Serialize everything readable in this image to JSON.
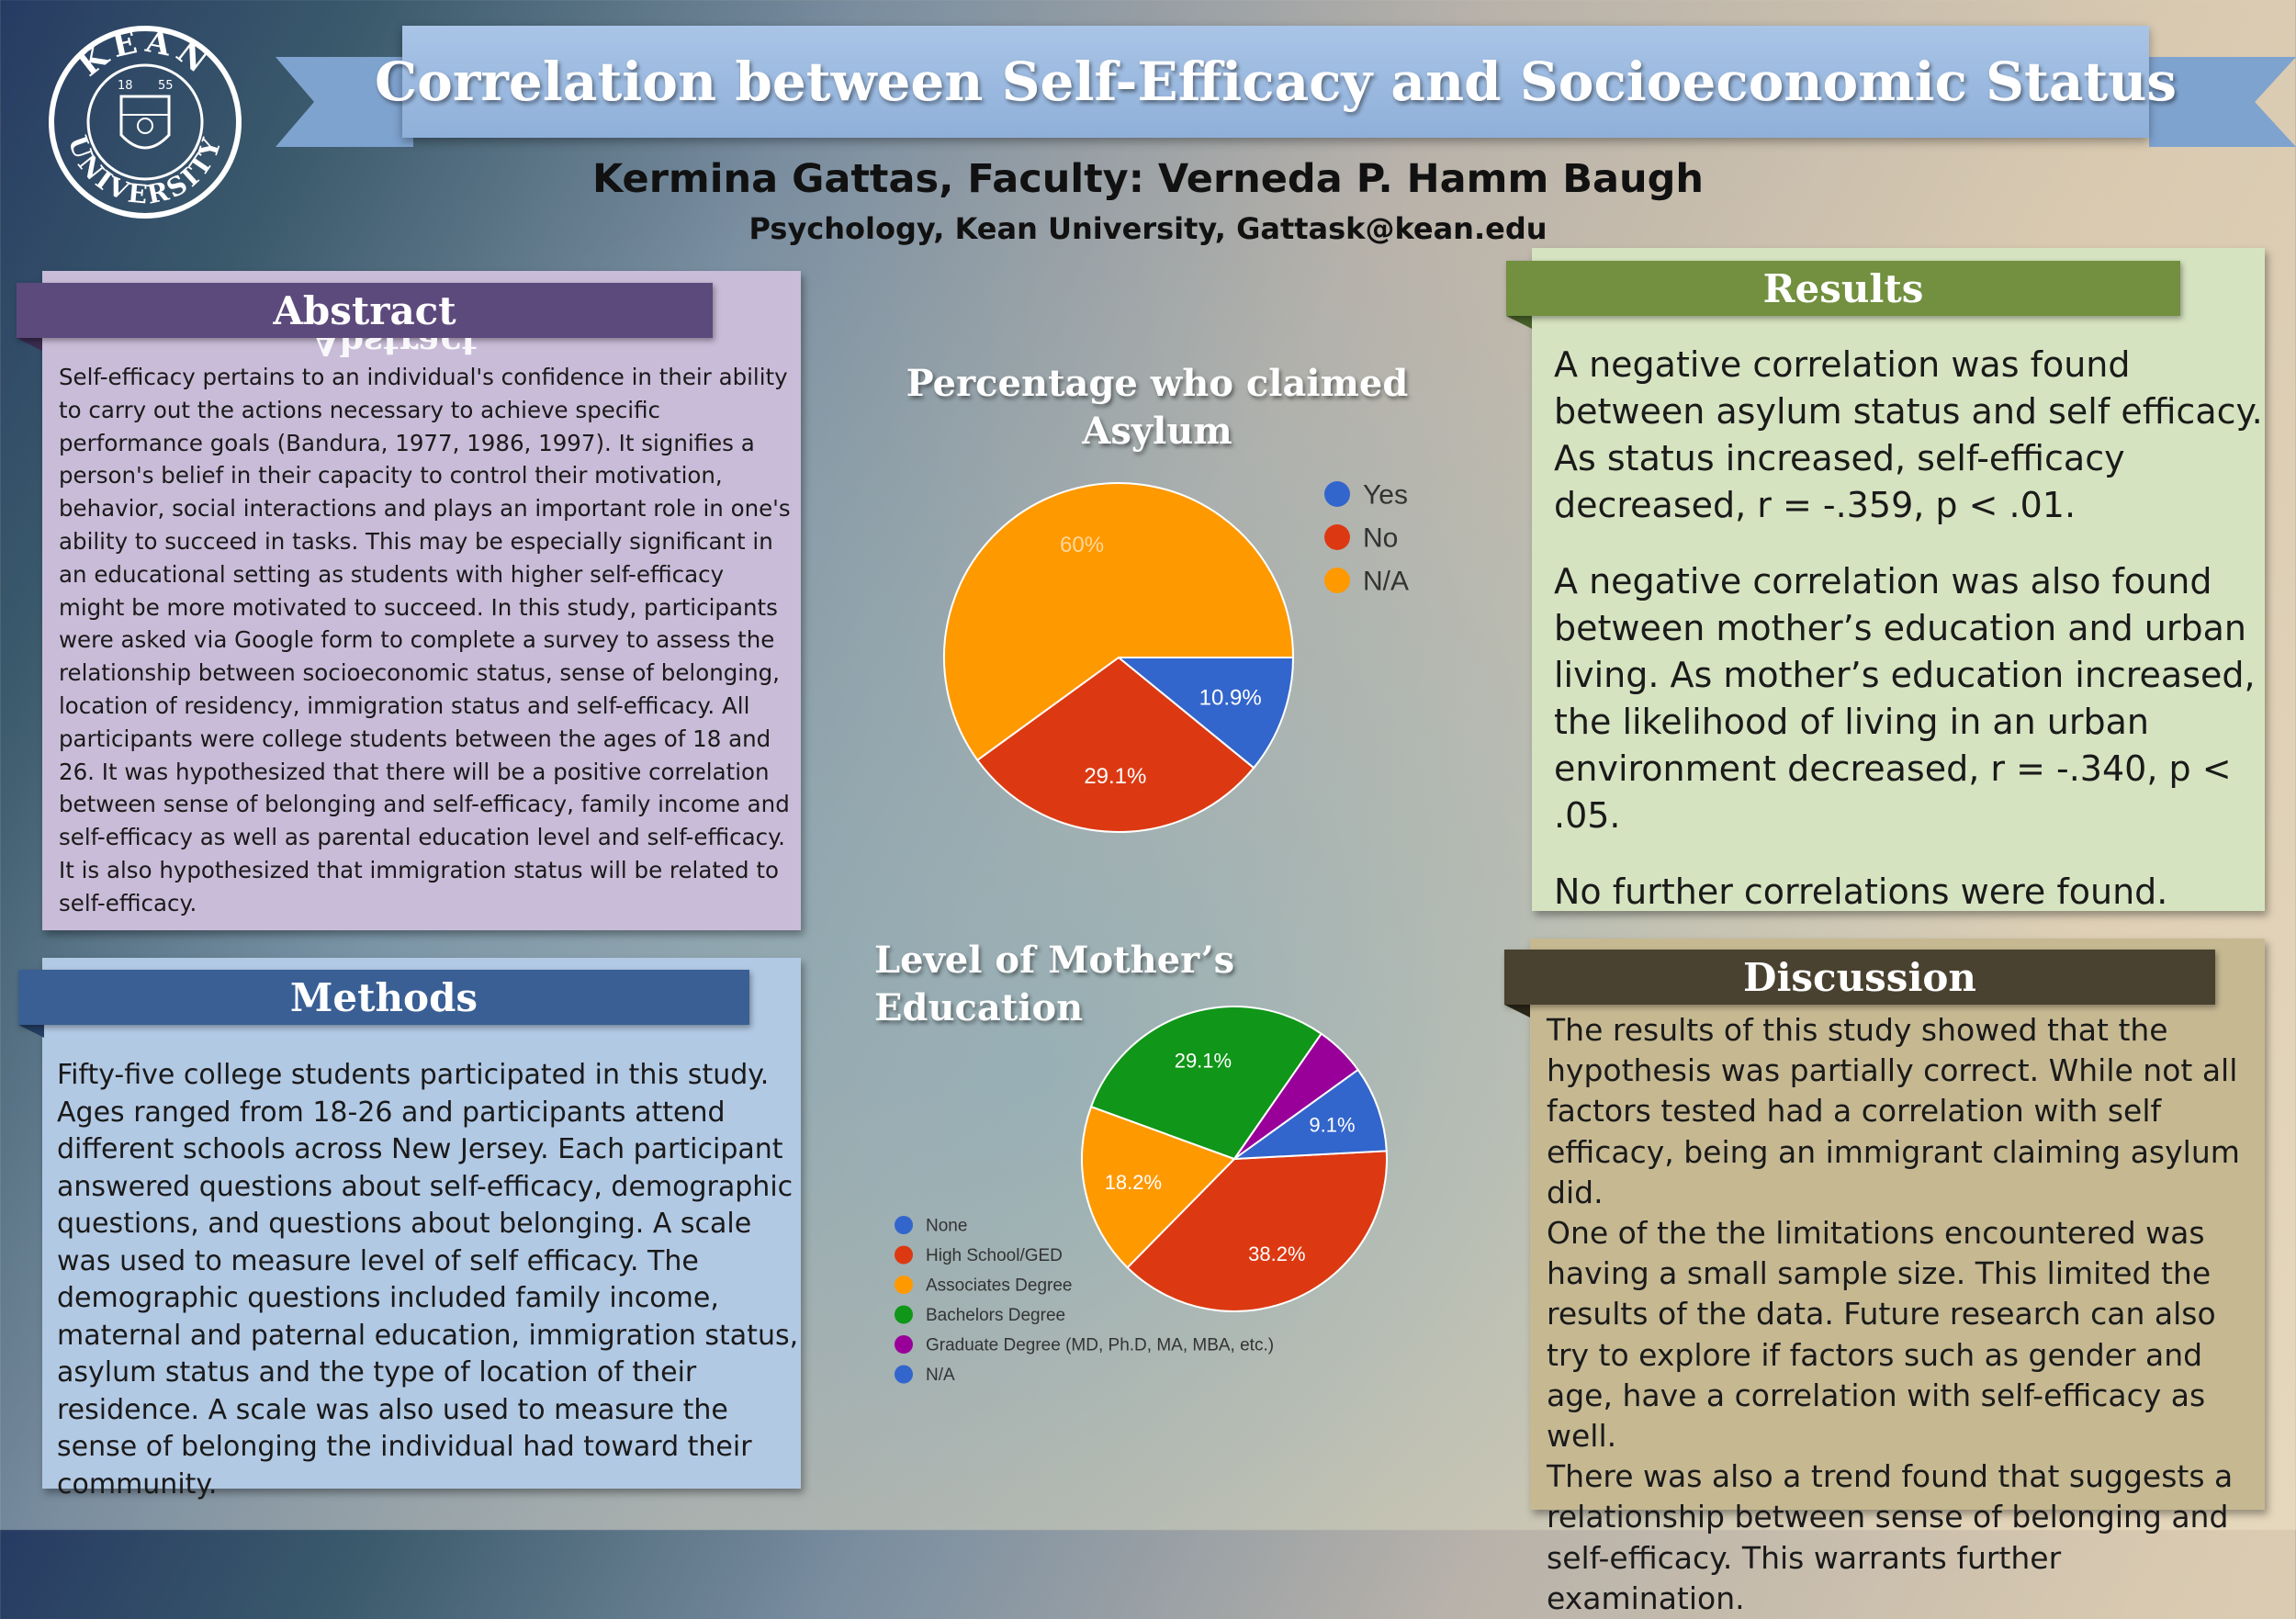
{
  "header": {
    "title": "Correlation between Self-Efficacy and Socioeconomic Status",
    "authors": "Kermina Gattas, Faculty: Verneda P. Hamm Baugh",
    "affiliation": "Psychology, Kean University, Gattask@kean.edu"
  },
  "logo": {
    "top_text": "KEAN",
    "bottom_text": "UNIVERSITY",
    "year_left": "18",
    "year_right": "55"
  },
  "sections": {
    "abstract": {
      "title": "Abstract",
      "text": "Self-efficacy pertains to an individual's confidence in their ability to carry out the actions necessary to achieve specific performance goals (Bandura, 1977, 1986, 1997).  It signifies a person's belief in their capacity to control their motivation, behavior, social interactions and plays an important role in one's ability to succeed in tasks. This may be especially significant in an educational setting as students with higher self-efficacy might be more motivated to succeed. In this study, participants were asked via Google form to complete a survey to assess the relationship between socioeconomic status, sense of belonging, location of residency, immigration status and self-efficacy. All participants were college students between the ages of 18 and 26. It was hypothesized that there will be a positive correlation between sense of belonging and self-efficacy, family income and self-efficacy as well as parental education level and self-efficacy. It is also hypothesized that immigration status will be related to self-efficacy."
    },
    "methods": {
      "title": "Methods",
      "text": "Fifty-five college students participated in this study. Ages ranged from 18-26 and participants attend different schools across New Jersey. Each participant answered questions about self-efficacy, demographic questions, and questions about belonging. A scale was used to measure level of self efficacy. The demographic questions included family income, maternal and paternal education, immigration status, asylum status and the type of location of their residence. A scale was also used to measure the sense of belonging the individual had toward their community."
    },
    "results": {
      "title": "Results",
      "paragraphs": [
        "A negative correlation was found between asylum status and self efficacy. As status increased, self-efficacy decreased, r = -.359, p < .01.",
        "A negative correlation was also found between mother’s education and urban living. As mother’s education increased, the likelihood of living in an urban environment decreased, r = -.340, p < .05.",
        "No further correlations were found."
      ]
    },
    "discussion": {
      "title": "Discussion",
      "paragraphs": [
        "The results of this study showed that the hypothesis was partially correct. While not all factors tested had a correlation with self efficacy, being an immigrant claiming asylum did.",
        "One of the the limitations encountered was having a small sample size. This limited the results of the data. Future research can also try to explore if factors such as gender and age, have a correlation with self-efficacy as well.",
        "There was also a trend found that suggests a relationship between sense of belonging and self-efficacy. This warrants further examination."
      ]
    }
  },
  "chart_data": [
    {
      "type": "pie",
      "title": "Percentage who claimed Asylum",
      "legend_position": "right",
      "slices": [
        {
          "label": "Yes",
          "value": 10.9,
          "display": "10.9%",
          "color": "#3366cc"
        },
        {
          "label": "No",
          "value": 29.1,
          "display": "29.1%",
          "color": "#dc3912"
        },
        {
          "label": "N/A",
          "value": 60.0,
          "display": "60%",
          "color": "#ff9900"
        }
      ]
    },
    {
      "type": "pie",
      "title": "Level of Mother’s Education",
      "legend_position": "left",
      "slices": [
        {
          "label": "None",
          "value": 0,
          "display": "",
          "color": "#3366cc"
        },
        {
          "label": "High School/GED",
          "value": 38.2,
          "display": "38.2%",
          "color": "#dc3912"
        },
        {
          "label": "Associates Degree",
          "value": 18.2,
          "display": "18.2%",
          "color": "#ff9900"
        },
        {
          "label": "Bachelors Degree",
          "value": 29.1,
          "display": "29.1%",
          "color": "#109618"
        },
        {
          "label": "Graduate Degree (MD, Ph.D, MA, MBA, etc.)",
          "value": 5.4,
          "display": "",
          "color": "#990099"
        },
        {
          "label": "N/A",
          "value": 9.1,
          "display": "9.1%",
          "color": "#3366cc"
        }
      ]
    }
  ]
}
